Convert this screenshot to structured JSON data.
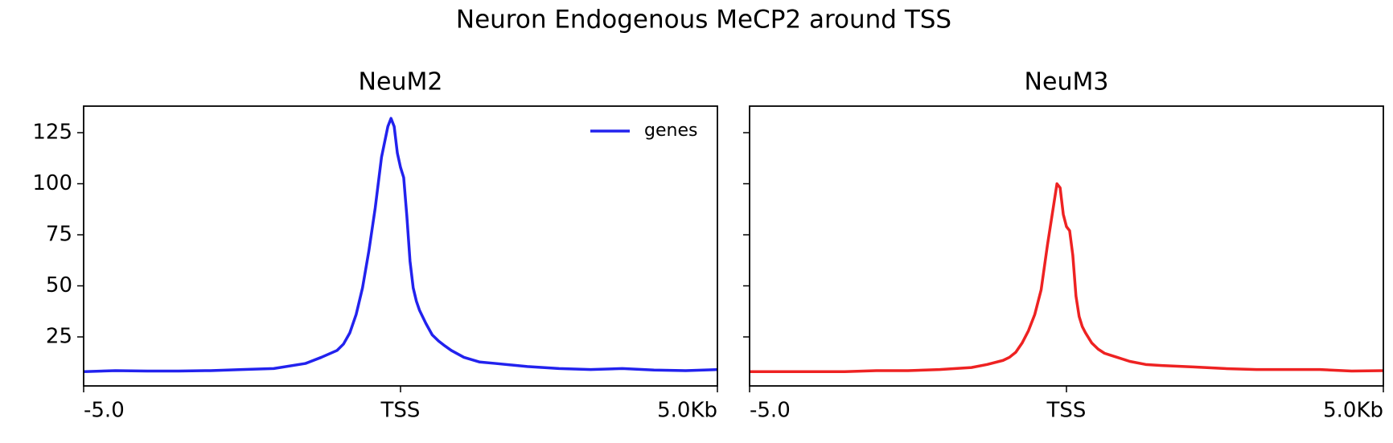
{
  "title": "Neuron Endogenous MeCP2 around TSS",
  "chart_data": [
    {
      "type": "line",
      "title": "NeuM2",
      "x": [
        -5000,
        -4500,
        -4000,
        -3500,
        -3000,
        -2500,
        -2000,
        -1500,
        -1250,
        -1000,
        -900,
        -800,
        -700,
        -600,
        -500,
        -400,
        -300,
        -200,
        -150,
        -100,
        -50,
        0,
        50,
        100,
        150,
        200,
        250,
        300,
        400,
        500,
        600,
        700,
        800,
        1000,
        1250,
        1500,
        2000,
        2500,
        3000,
        3500,
        4000,
        4500,
        5000
      ],
      "series": [
        {
          "name": "genes",
          "color": "#2222ee",
          "values": [
            8,
            8.5,
            8.3,
            8.3,
            8.5,
            9,
            9.5,
            12,
            15,
            18.4,
            21.5,
            27,
            36,
            49,
            67,
            88,
            113,
            128,
            132,
            128,
            115,
            108,
            103,
            84,
            62,
            49,
            42.5,
            38,
            31.6,
            26,
            23,
            20.6,
            18.4,
            15,
            12.7,
            12,
            10.5,
            9.5,
            9,
            9.5,
            8.8,
            8.5,
            9
          ]
        }
      ],
      "xlim": [
        -5000,
        5000
      ],
      "xticks": [
        {
          "value": -5000,
          "label": "-5.0"
        },
        {
          "value": 0,
          "label": "TSS"
        },
        {
          "value": 5000,
          "label": "5.0Kb"
        }
      ],
      "ylim": [
        1,
        138
      ],
      "yticks": [
        25,
        50,
        75,
        100,
        125
      ],
      "show_ytick_labels": true,
      "legend": "upper right"
    },
    {
      "type": "line",
      "title": "NeuM3",
      "x": [
        -5000,
        -4500,
        -4000,
        -3500,
        -3000,
        -2500,
        -2000,
        -1500,
        -1250,
        -1000,
        -900,
        -800,
        -700,
        -600,
        -500,
        -400,
        -300,
        -200,
        -150,
        -100,
        -50,
        0,
        50,
        100,
        150,
        200,
        250,
        300,
        400,
        500,
        600,
        700,
        800,
        1000,
        1250,
        1500,
        2000,
        2500,
        3000,
        3500,
        4000,
        4500,
        5000
      ],
      "series": [
        {
          "color": "#ee2222",
          "values": [
            8,
            8,
            8,
            8,
            8.5,
            8.5,
            9,
            10,
            11.5,
            13.5,
            15,
            17.5,
            22,
            28,
            36,
            48,
            70,
            90,
            100,
            98,
            85,
            79,
            77,
            65,
            45,
            35,
            30,
            27,
            22,
            19,
            17,
            16,
            15,
            13,
            11.5,
            11,
            10.3,
            9.5,
            9,
            9,
            9,
            8.3,
            8.5
          ]
        }
      ],
      "xlim": [
        -5000,
        5000
      ],
      "xticks": [
        {
          "value": -5000,
          "label": "-5.0"
        },
        {
          "value": 0,
          "label": "TSS"
        },
        {
          "value": 5000,
          "label": "5.0Kb"
        }
      ],
      "ylim": [
        1,
        138
      ],
      "yticks": [
        25,
        50,
        75,
        100,
        125
      ],
      "show_ytick_labels": false
    }
  ]
}
